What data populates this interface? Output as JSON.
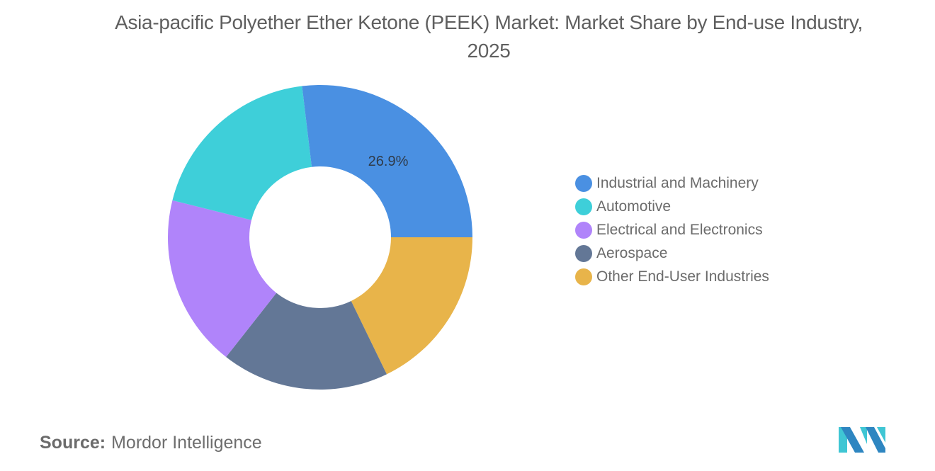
{
  "title": "Asia-pacific Polyether Ether Ketone (PEEK) Market: Market Share by End-use Industry, 2025",
  "source": {
    "label": "Source:",
    "value": "Mordor Intelligence"
  },
  "logo": {
    "name": "mordor-intelligence-logo",
    "colors": [
      "#3fc6d4",
      "#2e86c1"
    ]
  },
  "legend": {
    "items": [
      {
        "label": "Industrial and Machinery",
        "color": "#4a90e2"
      },
      {
        "label": "Automotive",
        "color": "#3ecfd9"
      },
      {
        "label": "Electrical and Electronics",
        "color": "#b084fa"
      },
      {
        "label": "Aerospace",
        "color": "#637796"
      },
      {
        "label": "Other End-User Industries",
        "color": "#e8b44a"
      }
    ]
  },
  "chart_data": {
    "type": "pie",
    "subtype": "donut",
    "title": "Asia-pacific Polyether Ether Ketone (PEEK) Market: Market Share by End-use Industry, 2025",
    "categories": [
      "Industrial and Machinery",
      "Automotive",
      "Electrical and Electronics",
      "Aerospace",
      "Other End-User Industries"
    ],
    "values": [
      26.9,
      19.2,
      18.3,
      17.8,
      17.8
    ],
    "units": "%",
    "colors": [
      "#4a90e2",
      "#3ecfd9",
      "#b084fa",
      "#637796",
      "#e8b44a"
    ],
    "data_labels": [
      {
        "category": "Industrial and Machinery",
        "text": "26.9%"
      }
    ],
    "legend_position": "right",
    "source": "Mordor Intelligence"
  }
}
